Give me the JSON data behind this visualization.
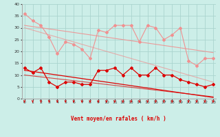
{
  "xlabel": "Vent moyen/en rafales ( km/h )",
  "background_color": "#cceee8",
  "grid_color": "#aad4ce",
  "x": [
    0,
    1,
    2,
    3,
    4,
    5,
    6,
    7,
    8,
    9,
    10,
    11,
    12,
    13,
    14,
    15,
    16,
    17,
    18,
    19,
    20,
    21,
    22,
    23
  ],
  "upper_scatter": [
    36,
    33,
    31,
    26,
    19,
    24,
    23,
    21,
    17,
    29,
    28,
    31,
    31,
    31,
    24,
    31,
    30,
    25,
    27,
    30,
    16,
    14,
    17,
    17
  ],
  "upper_trend1": [
    31,
    30.5,
    30,
    29.5,
    29,
    28.5,
    28,
    27.5,
    27,
    26.5,
    26,
    25.5,
    25,
    24.5,
    24,
    23.5,
    23,
    22.5,
    22,
    21.5,
    21,
    20.5,
    20,
    19.5
  ],
  "upper_trend2": [
    30,
    29,
    28,
    27,
    26,
    25,
    24,
    23,
    22,
    21,
    20,
    19,
    18,
    17,
    16,
    15,
    14,
    13,
    12,
    11,
    10,
    9,
    8,
    7
  ],
  "lower_scatter": [
    13,
    11,
    13,
    7,
    5,
    7,
    7,
    6,
    6,
    12,
    12,
    13,
    10,
    13,
    10,
    10,
    13,
    10,
    10,
    8,
    7,
    6,
    5,
    6
  ],
  "lower_trend1": [
    12,
    11.5,
    11,
    10.5,
    10,
    9.5,
    9,
    8.5,
    8,
    7.5,
    7,
    6.5,
    6,
    5.5,
    5,
    4.5,
    4,
    3.5,
    3,
    2.5,
    2,
    1.5,
    1,
    0.5
  ],
  "lower_trend2": [
    10,
    9.6,
    9.2,
    8.8,
    8.4,
    8.0,
    7.6,
    7.2,
    6.8,
    6.4,
    6.0,
    5.6,
    5.2,
    4.8,
    4.4,
    4.0,
    3.6,
    3.2,
    2.8,
    2.4,
    2.0,
    1.6,
    1.2,
    0.8
  ],
  "upper_color": "#f09090",
  "lower_color": "#dd0000",
  "ylim": [
    0,
    40
  ],
  "yticks": [
    0,
    5,
    10,
    15,
    20,
    25,
    30,
    35,
    40
  ],
  "xticks": [
    0,
    1,
    2,
    3,
    4,
    5,
    6,
    7,
    8,
    9,
    10,
    11,
    12,
    13,
    14,
    15,
    16,
    17,
    18,
    19,
    20,
    21,
    22,
    23
  ],
  "arrow_color": "#dd0000",
  "xlabel_color": "#dd0000"
}
